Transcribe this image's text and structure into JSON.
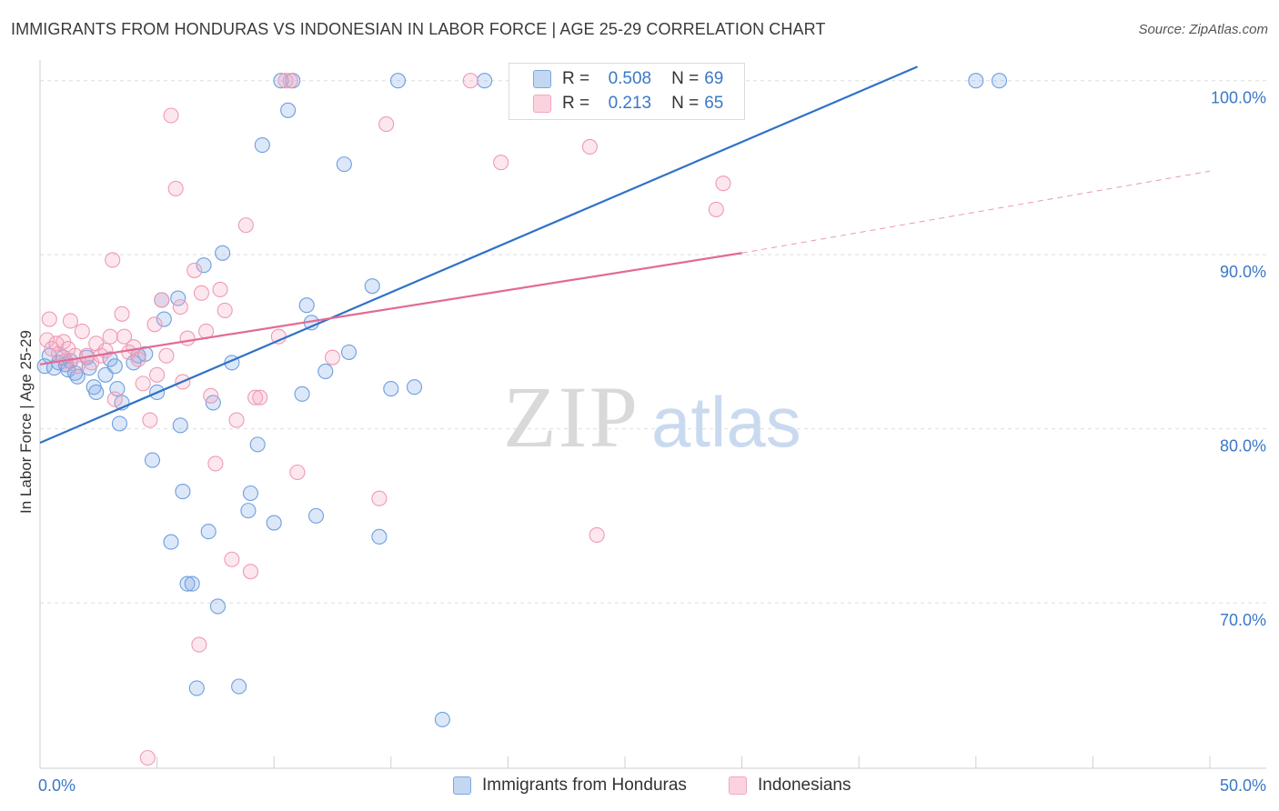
{
  "header": {
    "title": "IMMIGRANTS FROM HONDURAS VS INDONESIAN IN LABOR FORCE | AGE 25-29 CORRELATION CHART",
    "source": "Source: ZipAtlas.com"
  },
  "watermark": {
    "zip": "ZIP",
    "atlas": "atlas"
  },
  "legend": {
    "rows": [
      {
        "r_label": "R =",
        "r_value": "0.508",
        "n_label": "N =",
        "n_value": "69",
        "color": "#7aa7e0"
      },
      {
        "r_label": "R =",
        "r_value": "0.213",
        "n_label": "N =",
        "n_value": "65",
        "color": "#f4a6bd"
      }
    ]
  },
  "bottom_legend": {
    "items": [
      {
        "label": "Immigrants from Honduras",
        "color": "#7aa7e0"
      },
      {
        "label": "Indonesians",
        "color": "#f4a6bd"
      }
    ]
  },
  "chart_data": {
    "type": "scatter",
    "xlabel": "",
    "ylabel": "In Labor Force | Age 25-29",
    "xlim": [
      0,
      50
    ],
    "ylim": [
      60.5,
      101.5
    ],
    "x_tick_labels": [
      {
        "value": 0,
        "label": "0.0%"
      },
      {
        "value": 50,
        "label": "50.0%"
      }
    ],
    "x_minor_ticks": [
      0,
      5,
      10,
      15,
      20,
      25,
      30,
      35,
      40,
      45,
      50
    ],
    "y_tick_labels": [
      {
        "value": 70,
        "label": "70.0%"
      },
      {
        "value": 80,
        "label": "80.0%"
      },
      {
        "value": 90,
        "label": "90.0%"
      },
      {
        "value": 100,
        "label": "100.0%"
      }
    ],
    "grid": true,
    "legend_position": "top-center",
    "series": [
      {
        "name": "Immigrants from Honduras",
        "color": "#6d9fe0",
        "fill": "rgba(130,170,230,0.28)",
        "trend": {
          "x0": 0,
          "y0": 79.2,
          "x1": 37.5,
          "y1": 100.8,
          "color": "#2e72c8",
          "dashed_until": null
        },
        "points": [
          [
            0.2,
            83.6
          ],
          [
            0.4,
            84.2
          ],
          [
            0.6,
            83.5
          ],
          [
            0.8,
            83.8
          ],
          [
            1.0,
            84.1
          ],
          [
            1.1,
            83.7
          ],
          [
            1.2,
            83.4
          ],
          [
            1.3,
            83.9
          ],
          [
            1.5,
            83.2
          ],
          [
            1.6,
            83.0
          ],
          [
            2.0,
            84.1
          ],
          [
            2.1,
            83.5
          ],
          [
            2.3,
            82.4
          ],
          [
            2.4,
            82.1
          ],
          [
            2.8,
            83.1
          ],
          [
            3.0,
            84.0
          ],
          [
            3.2,
            83.6
          ],
          [
            3.3,
            82.3
          ],
          [
            3.5,
            81.5
          ],
          [
            3.4,
            80.3
          ],
          [
            4.0,
            83.8
          ],
          [
            4.2,
            84.2
          ],
          [
            4.5,
            84.3
          ],
          [
            4.8,
            78.2
          ],
          [
            5.0,
            82.1
          ],
          [
            5.2,
            87.4
          ],
          [
            5.3,
            86.3
          ],
          [
            5.6,
            73.5
          ],
          [
            5.9,
            87.5
          ],
          [
            6.0,
            80.2
          ],
          [
            6.1,
            76.4
          ],
          [
            6.3,
            71.1
          ],
          [
            6.5,
            71.1
          ],
          [
            6.7,
            65.1
          ],
          [
            7.0,
            89.4
          ],
          [
            7.2,
            74.1
          ],
          [
            7.4,
            81.5
          ],
          [
            7.6,
            69.8
          ],
          [
            7.8,
            90.1
          ],
          [
            8.2,
            83.8
          ],
          [
            8.5,
            65.2
          ],
          [
            8.9,
            75.3
          ],
          [
            9.0,
            76.3
          ],
          [
            9.3,
            79.1
          ],
          [
            9.5,
            96.3
          ],
          [
            10.0,
            74.6
          ],
          [
            10.3,
            100.0
          ],
          [
            10.6,
            98.3
          ],
          [
            10.8,
            100.0
          ],
          [
            11.2,
            82.0
          ],
          [
            11.4,
            87.1
          ],
          [
            11.6,
            86.1
          ],
          [
            11.8,
            75.0
          ],
          [
            12.2,
            83.3
          ],
          [
            13.0,
            95.2
          ],
          [
            13.2,
            84.4
          ],
          [
            14.2,
            88.2
          ],
          [
            14.5,
            73.8
          ],
          [
            15.0,
            82.3
          ],
          [
            15.3,
            100.0
          ],
          [
            16.0,
            82.4
          ],
          [
            17.2,
            63.3
          ],
          [
            19.0,
            100.0
          ],
          [
            24.1,
            100.0
          ],
          [
            25.0,
            100.0
          ],
          [
            25.5,
            100.0
          ],
          [
            28.5,
            100.0
          ],
          [
            40.0,
            100.0
          ],
          [
            41.0,
            100.0
          ]
        ]
      },
      {
        "name": "Indonesians",
        "color": "#ef9ab3",
        "fill": "rgba(244,170,195,0.28)",
        "trend": {
          "x0": 0,
          "y0": 83.7,
          "x1": 30,
          "y1": 90.1,
          "x_dash_end": 50,
          "y_dash_end": 94.8,
          "color": "#e26b93"
        },
        "points": [
          [
            0.3,
            85.1
          ],
          [
            0.4,
            86.3
          ],
          [
            0.5,
            84.6
          ],
          [
            0.7,
            84.9
          ],
          [
            0.8,
            84.3
          ],
          [
            1.0,
            85.0
          ],
          [
            1.1,
            83.9
          ],
          [
            1.2,
            84.6
          ],
          [
            1.3,
            86.2
          ],
          [
            1.5,
            84.2
          ],
          [
            1.6,
            83.6
          ],
          [
            1.8,
            85.6
          ],
          [
            2.0,
            84.2
          ],
          [
            2.2,
            83.8
          ],
          [
            2.4,
            84.9
          ],
          [
            2.6,
            84.2
          ],
          [
            2.8,
            84.5
          ],
          [
            3.0,
            85.3
          ],
          [
            3.1,
            89.7
          ],
          [
            3.2,
            81.7
          ],
          [
            3.5,
            86.6
          ],
          [
            3.6,
            85.3
          ],
          [
            3.8,
            84.4
          ],
          [
            4.0,
            84.7
          ],
          [
            4.2,
            84.0
          ],
          [
            4.4,
            82.6
          ],
          [
            4.6,
            61.1
          ],
          [
            4.7,
            80.5
          ],
          [
            4.9,
            86.0
          ],
          [
            5.0,
            83.1
          ],
          [
            5.2,
            87.4
          ],
          [
            5.4,
            84.2
          ],
          [
            5.6,
            98.0
          ],
          [
            5.8,
            93.8
          ],
          [
            6.0,
            87.0
          ],
          [
            6.1,
            82.7
          ],
          [
            6.3,
            85.2
          ],
          [
            6.6,
            89.1
          ],
          [
            6.8,
            67.6
          ],
          [
            6.9,
            87.8
          ],
          [
            7.1,
            85.6
          ],
          [
            7.3,
            81.9
          ],
          [
            7.5,
            78.0
          ],
          [
            7.7,
            88.0
          ],
          [
            7.9,
            86.8
          ],
          [
            8.2,
            72.5
          ],
          [
            8.4,
            80.5
          ],
          [
            8.8,
            91.7
          ],
          [
            9.0,
            71.8
          ],
          [
            9.2,
            81.8
          ],
          [
            9.4,
            81.8
          ],
          [
            10.2,
            85.3
          ],
          [
            10.5,
            100.0
          ],
          [
            10.7,
            100.0
          ],
          [
            11.0,
            77.5
          ],
          [
            12.5,
            84.1
          ],
          [
            14.5,
            76.0
          ],
          [
            14.8,
            97.5
          ],
          [
            18.4,
            100.0
          ],
          [
            19.7,
            95.3
          ],
          [
            22.6,
            98.6
          ],
          [
            23.5,
            96.2
          ],
          [
            23.8,
            73.9
          ],
          [
            28.9,
            92.6
          ],
          [
            29.2,
            94.1
          ]
        ]
      }
    ]
  }
}
